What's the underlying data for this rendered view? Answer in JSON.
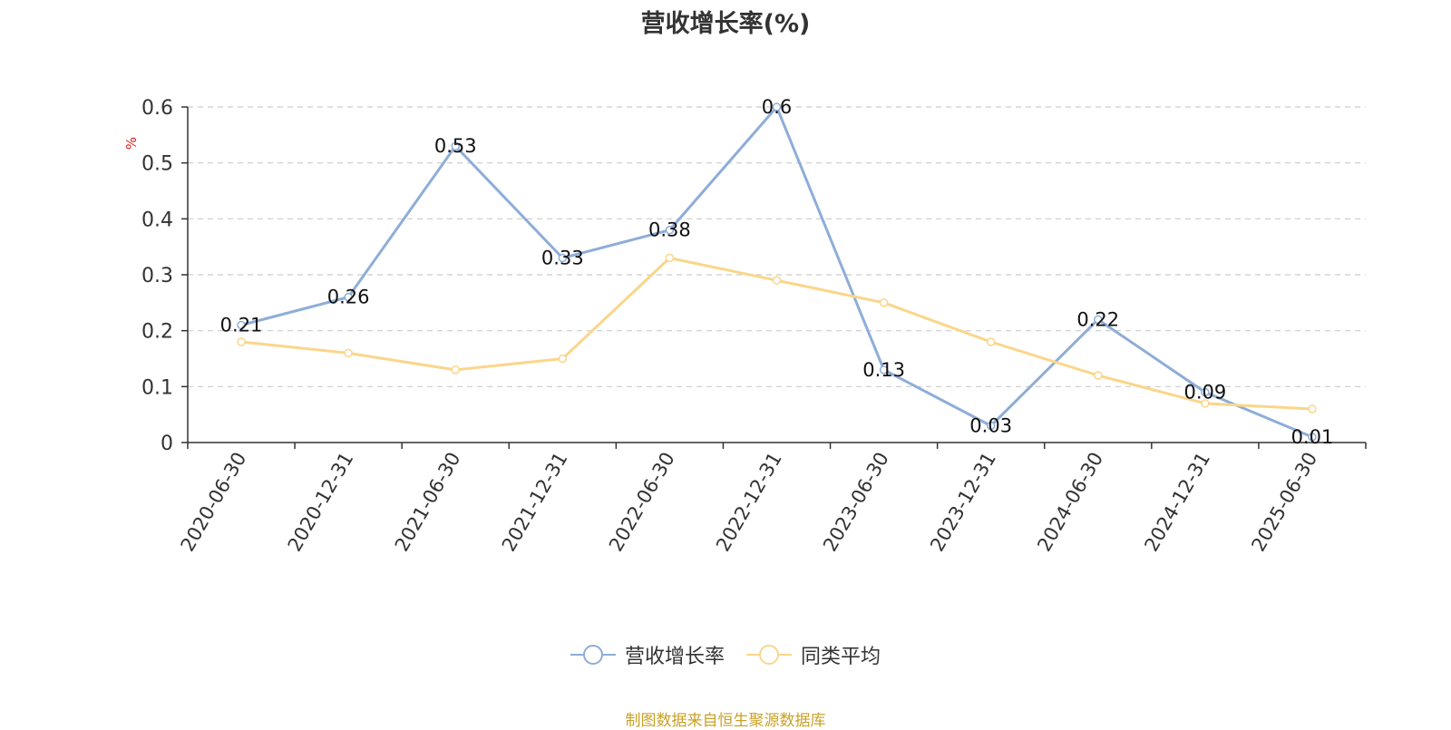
{
  "chart_data": {
    "type": "line",
    "title": "营收增长率(%)",
    "ylabel": "%",
    "xlabel": "",
    "categories": [
      "2020-06-30",
      "2020-12-31",
      "2021-06-30",
      "2021-12-31",
      "2022-06-30",
      "2022-12-31",
      "2023-06-30",
      "2023-12-31",
      "2024-06-30",
      "2024-12-31",
      "2025-06-30"
    ],
    "ylim": [
      0,
      0.6
    ],
    "yticks": [
      "0",
      "0.1",
      "0.2",
      "0.3",
      "0.4",
      "0.5",
      "0.6"
    ],
    "grid": true,
    "legend_position": "bottom",
    "series": [
      {
        "name": "营收增长率",
        "color": "#8eadd8",
        "show_labels": true,
        "values": [
          0.21,
          0.26,
          0.53,
          0.33,
          0.38,
          0.6,
          0.13,
          0.03,
          0.22,
          0.09,
          0.01
        ]
      },
      {
        "name": "同类平均",
        "color": "#fad68a",
        "show_labels": false,
        "values": [
          0.18,
          0.16,
          0.13,
          0.15,
          0.33,
          0.29,
          0.25,
          0.18,
          0.12,
          0.07,
          0.06
        ]
      }
    ]
  },
  "source": "制图数据来自恒生聚源数据库"
}
